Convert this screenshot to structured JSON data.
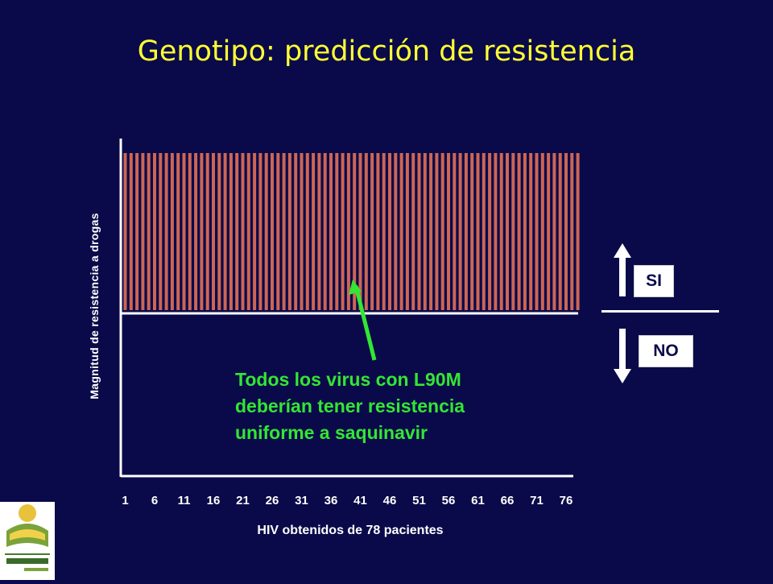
{
  "title": "Genotipo: predicción de resistencia",
  "chart_data": {
    "type": "bar",
    "x": [
      1,
      2,
      3,
      4,
      5,
      6,
      7,
      8,
      9,
      10,
      11,
      12,
      13,
      14,
      15,
      16,
      17,
      18,
      19,
      20,
      21,
      22,
      23,
      24,
      25,
      26,
      27,
      28,
      29,
      30,
      31,
      32,
      33,
      34,
      35,
      36,
      37,
      38,
      39,
      40,
      41,
      42,
      43,
      44,
      45,
      46,
      47,
      48,
      49,
      50,
      51,
      52,
      53,
      54,
      55,
      56,
      57,
      58,
      59,
      60,
      61,
      62,
      63,
      64,
      65,
      66,
      67,
      68,
      69,
      70,
      71,
      72,
      73,
      74,
      75,
      76,
      77,
      78
    ],
    "values": [
      1,
      1,
      1,
      1,
      1,
      1,
      1,
      1,
      1,
      1,
      1,
      1,
      1,
      1,
      1,
      1,
      1,
      1,
      1,
      1,
      1,
      1,
      1,
      1,
      1,
      1,
      1,
      1,
      1,
      1,
      1,
      1,
      1,
      1,
      1,
      1,
      1,
      1,
      1,
      1,
      1,
      1,
      1,
      1,
      1,
      1,
      1,
      1,
      1,
      1,
      1,
      1,
      1,
      1,
      1,
      1,
      1,
      1,
      1,
      1,
      1,
      1,
      1,
      1,
      1,
      1,
      1,
      1,
      1,
      1,
      1,
      1,
      1,
      1,
      1,
      1,
      1,
      1
    ],
    "xticks": [
      "1",
      "6",
      "11",
      "16",
      "21",
      "26",
      "31",
      "36",
      "41",
      "46",
      "51",
      "56",
      "61",
      "66",
      "71",
      "76"
    ],
    "xlabel": "HIV obtenidos de 78 pacientes",
    "ylabel": "Magnitud de resistencia a drogas",
    "bar_color": "#cc6655",
    "annotation": [
      "Todos los virus con L90M",
      "deberían tener resistencia",
      "uniforme a saquinavir"
    ],
    "annotation_color": "#33e633"
  },
  "legend": {
    "si": "SI",
    "no": "NO"
  },
  "colors": {
    "background": "#0a0a4a",
    "title": "#ffff33",
    "text": "#ffffff"
  }
}
